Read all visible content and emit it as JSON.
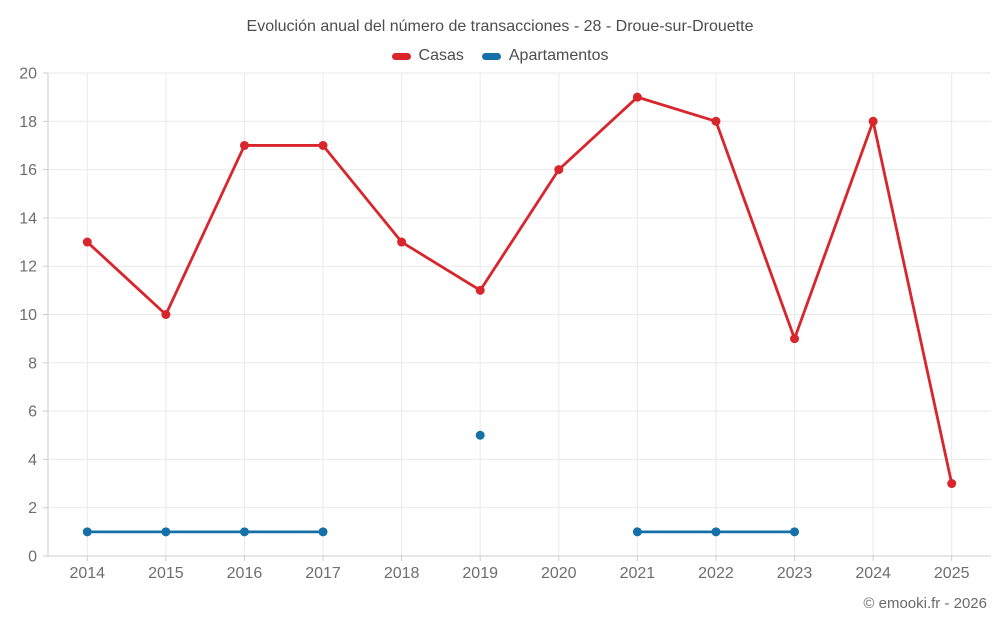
{
  "header": {
    "title": "Evolución anual del número de transacciones - 28 - Droue-sur-Drouette"
  },
  "legend": {
    "items": [
      {
        "label": "Casas",
        "color": "#d8262c"
      },
      {
        "label": "Apartamentos",
        "color": "#1470a6"
      }
    ]
  },
  "footer": {
    "watermark": "© emooki.fr - 2026"
  },
  "colors": {
    "casas": "#d8262c",
    "apartamentos": "#1470a6",
    "title_text": "#4d4d4d",
    "tick_text": "#6e6e6e",
    "gridline": "#e9e9e9",
    "axis_line": "#cccccc",
    "watermark_text": "#6a6a6a",
    "background": "#ffffff"
  },
  "chart_data": {
    "type": "line",
    "title": "Evolución anual del número de transacciones - 28 - Droue-sur-Drouette",
    "categories": [
      "2014",
      "2015",
      "2016",
      "2017",
      "2018",
      "2019",
      "2020",
      "2021",
      "2022",
      "2023",
      "2024",
      "2025"
    ],
    "series": [
      {
        "name": "Casas",
        "color": "#d8262c",
        "values": [
          13,
          10,
          17,
          17,
          13,
          11,
          16,
          19,
          18,
          9,
          18,
          3
        ]
      },
      {
        "name": "Apartamentos",
        "color": "#1470a6",
        "values": [
          1,
          1,
          1,
          1,
          null,
          5,
          null,
          1,
          1,
          1,
          null,
          null
        ]
      }
    ],
    "xlabel": "",
    "ylabel": "",
    "ylim": [
      0,
      20
    ],
    "ytick_step": 2,
    "grid": true,
    "legend_position": "top",
    "legend_entries": [
      "Casas",
      "Apartamentos"
    ],
    "annotations": [
      "© emooki.fr - 2026"
    ]
  }
}
